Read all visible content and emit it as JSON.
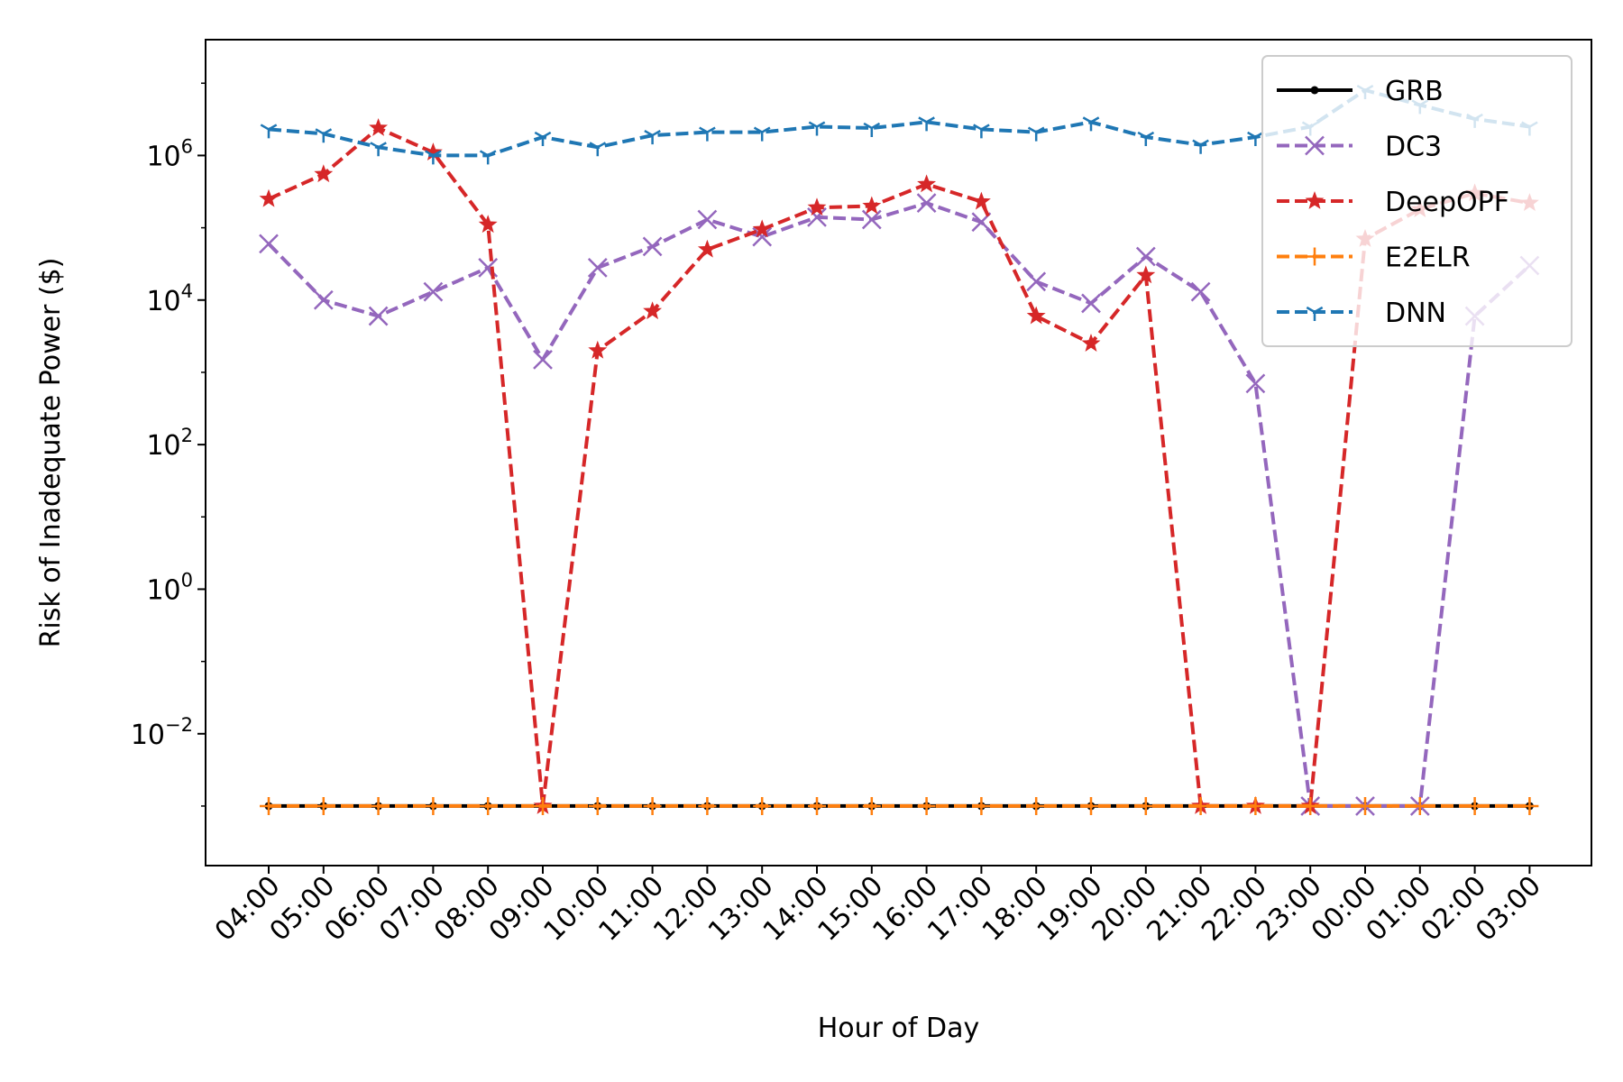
{
  "chart_data": {
    "type": "line",
    "xlabel": "Hour of Day",
    "ylabel": "Risk of Inadequate Power ($)",
    "yscale": "log",
    "ylim": [
      0.00015,
      40000000
    ],
    "yticks": [
      {
        "base": "10",
        "exp": "6",
        "value": 1000000
      },
      {
        "base": "10",
        "exp": "4",
        "value": 10000
      },
      {
        "base": "10",
        "exp": "2",
        "value": 100
      },
      {
        "base": "10",
        "exp": "0",
        "value": 1
      },
      {
        "base": "10",
        "exp": "−2",
        "value": 0.01
      }
    ],
    "categories": [
      "04:00",
      "05:00",
      "06:00",
      "07:00",
      "08:00",
      "09:00",
      "10:00",
      "11:00",
      "12:00",
      "13:00",
      "14:00",
      "15:00",
      "16:00",
      "17:00",
      "18:00",
      "19:00",
      "20:00",
      "21:00",
      "22:00",
      "23:00",
      "00:00",
      "01:00",
      "02:00",
      "03:00"
    ],
    "legend_position": "top-right",
    "grid": false,
    "series": [
      {
        "name": "GRB",
        "color": "#000000",
        "dash": "solid",
        "marker": "dot",
        "values": [
          0.001,
          0.001,
          0.001,
          0.001,
          0.001,
          0.001,
          0.001,
          0.001,
          0.001,
          0.001,
          0.001,
          0.001,
          0.001,
          0.001,
          0.001,
          0.001,
          0.001,
          0.001,
          0.001,
          0.001,
          0.001,
          0.001,
          0.001,
          0.001
        ]
      },
      {
        "name": "DC3",
        "color": "#9467bd",
        "dash": "dashed",
        "marker": "x",
        "values": [
          60000,
          10000,
          6000,
          13000,
          28000,
          1500,
          28000,
          55000,
          130000,
          75000,
          140000,
          130000,
          220000,
          120000,
          18000,
          9000,
          40000,
          13000,
          700,
          0.001,
          0.001,
          0.001,
          6000,
          30000
        ]
      },
      {
        "name": "DeepOPF",
        "color": "#d62728",
        "dash": "dashed",
        "marker": "star",
        "values": [
          250000,
          550000,
          2400000,
          1100000,
          110000,
          0.001,
          2000,
          7000,
          50000,
          95000,
          190000,
          200000,
          400000,
          230000,
          6000,
          2500,
          22000,
          0.001,
          0.001,
          0.001,
          70000,
          180000,
          300000,
          220000
        ]
      },
      {
        "name": "E2ELR",
        "color": "#ff7f0e",
        "dash": "dashed",
        "marker": "plus",
        "values": [
          0.001,
          0.001,
          0.001,
          0.001,
          0.001,
          0.001,
          0.001,
          0.001,
          0.001,
          0.001,
          0.001,
          0.001,
          0.001,
          0.001,
          0.001,
          0.001,
          0.001,
          0.001,
          0.001,
          0.001,
          0.001,
          0.001,
          0.001,
          0.001
        ]
      },
      {
        "name": "DNN",
        "color": "#1f77b4",
        "dash": "dashed",
        "marker": "tri",
        "values": [
          2300000,
          2000000,
          1300000,
          1000000,
          1000000,
          1800000,
          1300000,
          1900000,
          2100000,
          2100000,
          2500000,
          2400000,
          2900000,
          2300000,
          2100000,
          2900000,
          1800000,
          1400000,
          1800000,
          2500000,
          8000000,
          5000000,
          3200000,
          2500000
        ]
      }
    ]
  }
}
